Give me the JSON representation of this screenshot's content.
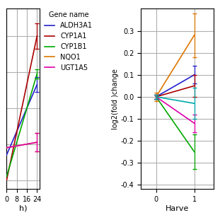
{
  "chart_data": [
    {
      "type": "line",
      "x": [
        0,
        24
      ],
      "xlim": [
        0,
        26
      ],
      "xticks": [
        0,
        8,
        16,
        24
      ],
      "ylim": [
        -0.45,
        0.55
      ],
      "yticks": [
        0.4,
        0.2,
        0.0,
        -0.2,
        -0.4
      ],
      "xlabel": "h)",
      "grid": true,
      "tick_labels": "x",
      "legend": "upper left",
      "legend_title": "Gene name",
      "series": [
        {
          "name": "ALDH3A1",
          "color": "#2222cc",
          "values": [
            -0.26,
            0.13
          ],
          "errors": [
            null,
            0.04
          ]
        },
        {
          "name": "CYP1A1",
          "color": "#aa0000",
          "values": [
            -0.4,
            0.4
          ],
          "errors": [
            null,
            0.07
          ]
        },
        {
          "name": "CYP1B1",
          "color": "#00aa00",
          "values": [
            -0.38,
            0.19
          ],
          "errors": [
            null,
            0.025
          ]
        },
        {
          "name": "NQO1",
          "color": "#dd7700",
          "values": [
            -0.22,
            -0.19
          ],
          "errors": [
            null,
            0.05
          ]
        },
        {
          "name": "UGT1A5",
          "color": "#dd00aa",
          "values": [
            -0.22,
            -0.19
          ],
          "errors": [
            null,
            0.05
          ]
        }
      ]
    },
    {
      "type": "line",
      "x": [
        0,
        1
      ],
      "xlim": [
        -0.4,
        1.5
      ],
      "xticks": [
        0,
        1
      ],
      "ylim": [
        -0.42,
        0.4
      ],
      "yticks": [
        0.3,
        0.2,
        0.1,
        0.0,
        -0.1,
        -0.2,
        -0.3,
        -0.4
      ],
      "xlabel": "Harve",
      "ylabel": "log2(fold )change",
      "grid": true,
      "series": [
        {
          "name": "ALDH3A1",
          "color": "#2222cc",
          "values": [
            0.0,
            0.1
          ],
          "errors": [
            0.01,
            0.04
          ]
        },
        {
          "name": "CYP1A1",
          "color": "#aa0000",
          "values": [
            0.0,
            0.05
          ],
          "errors": [
            0.01,
            0.05
          ]
        },
        {
          "name": "CYP1B1",
          "color": "#00aa00",
          "values": [
            0.0,
            -0.25
          ],
          "errors": [
            0.01,
            0.08
          ]
        },
        {
          "name": "NQO1",
          "color": "#dd7700",
          "values": [
            0.0,
            0.28
          ],
          "errors": [
            0.02,
            0.1
          ]
        },
        {
          "name": "UGT1A5",
          "color": "#dd00aa",
          "values": [
            0.0,
            -0.12
          ],
          "errors": [
            0.01,
            0.04
          ]
        },
        {
          "color": "#00aaaa",
          "values": [
            0.0,
            -0.03
          ],
          "errors": [
            0.01,
            0.07
          ]
        }
      ]
    }
  ]
}
